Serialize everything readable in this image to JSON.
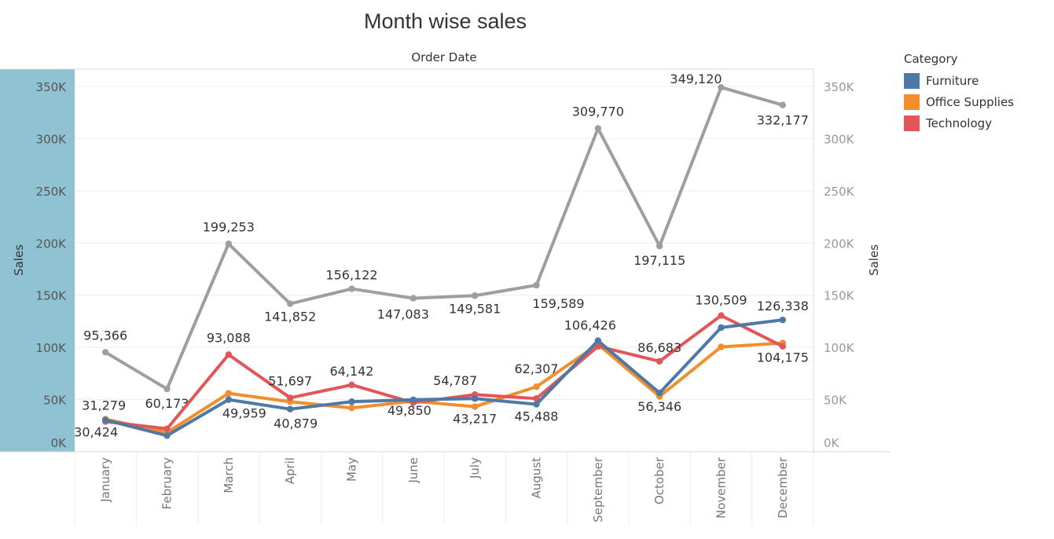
{
  "title": "Month wise sales",
  "column_header": "Order Date",
  "legend": {
    "title": "Category",
    "items": [
      {
        "label": "Furniture",
        "color": "#4e79a7"
      },
      {
        "label": "Office Supplies",
        "color": "#f28e2b"
      },
      {
        "label": "Technology",
        "color": "#e15759"
      }
    ]
  },
  "chart_data": {
    "type": "line",
    "x": [
      "January",
      "February",
      "March",
      "April",
      "May",
      "June",
      "July",
      "August",
      "September",
      "October",
      "November",
      "December"
    ],
    "xlabel": "",
    "ylabel": "Sales",
    "y2label": "Sales",
    "ylim": [
      0,
      350000
    ],
    "yticks": [
      "0K",
      "50K",
      "100K",
      "150K",
      "200K",
      "250K",
      "300K",
      "350K"
    ],
    "grid": true,
    "legend_position": "right",
    "series": [
      {
        "color": "#9e9e9e",
        "axis": "right",
        "values": [
          95366,
          60173,
          199253,
          141852,
          156122,
          147083,
          149581,
          159589,
          309770,
          197115,
          349120,
          332177
        ],
        "labels": [
          "95,366",
          "60,173",
          "199,253",
          "141,852",
          "156,122",
          "147,083",
          "149,581",
          "159,589",
          "309,770",
          "197,115",
          "349,120",
          "332,177"
        ]
      },
      {
        "name": "Office Supplies",
        "color": "#f28e2b",
        "axis": "left",
        "values": [
          31279,
          18500,
          56000,
          48000,
          42000,
          48500,
          43217,
          62307,
          103000,
          53000,
          100500,
          104175
        ],
        "labels": {
          "0": "31,279",
          "6": "43,217",
          "7": "62,307",
          "11": "104,175"
        }
      },
      {
        "name": "Technology",
        "color": "#e15759",
        "axis": "left",
        "values": [
          29000,
          22000,
          93088,
          51697,
          64142,
          47000,
          54787,
          51000,
          101000,
          86683,
          130509,
          101000
        ],
        "labels": {
          "2": "93,088",
          "3": "51,697",
          "4": "64,142",
          "6": "54,787",
          "9": "86,683",
          "10": "130,509"
        }
      },
      {
        "name": "Furniture",
        "color": "#4e79a7",
        "axis": "left",
        "values": [
          30424,
          15500,
          49959,
          40879,
          48000,
          49850,
          51000,
          45488,
          106426,
          56346,
          119000,
          126338
        ],
        "labels": {
          "0": "30,424",
          "2": "49,959",
          "3": "40,879",
          "5": "49,850",
          "7": "45,488",
          "8": "106,426",
          "9": "56,346",
          "11": "126,338"
        }
      }
    ]
  }
}
